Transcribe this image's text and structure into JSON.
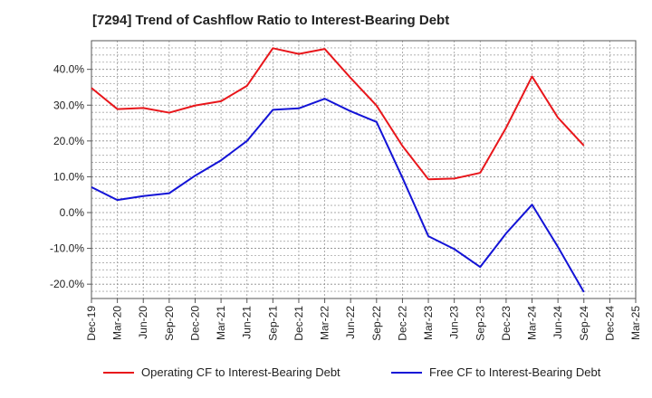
{
  "chart_data": {
    "type": "line",
    "title": "[7294]  Trend of Cashflow Ratio to Interest-Bearing Debt",
    "xlabel": "",
    "ylabel": "",
    "categories": [
      "Dec-19",
      "Mar-20",
      "Jun-20",
      "Sep-20",
      "Dec-20",
      "Mar-21",
      "Jun-21",
      "Sep-21",
      "Dec-21",
      "Mar-22",
      "Jun-22",
      "Sep-22",
      "Dec-22",
      "Mar-23",
      "Jun-23",
      "Sep-23",
      "Dec-23",
      "Mar-24",
      "Jun-24",
      "Sep-24",
      "Dec-24",
      "Mar-25"
    ],
    "ylim": [
      -24,
      48
    ],
    "yticks": [
      -20,
      -10,
      0,
      10,
      20,
      30,
      40
    ],
    "ytick_labels": [
      "-20.0%",
      "-10.0%",
      "0.0%",
      "10.0%",
      "20.0%",
      "30.0%",
      "40.0%"
    ],
    "grid": true,
    "legend_position": "bottom",
    "series": [
      {
        "name": "Operating CF to Interest-Bearing Debt",
        "color": "#e8161b",
        "values": [
          34.8,
          28.9,
          29.2,
          27.9,
          29.9,
          31.1,
          35.4,
          45.9,
          44.3,
          45.7,
          37.6,
          29.9,
          18.6,
          9.3,
          9.5,
          11.1,
          23.7,
          38.0,
          26.5,
          18.7,
          null,
          null
        ]
      },
      {
        "name": "Free CF to Interest-Bearing Debt",
        "color": "#1313d6",
        "values": [
          7.1,
          3.5,
          4.6,
          5.4,
          10.3,
          14.6,
          20.0,
          28.7,
          29.1,
          31.8,
          28.3,
          25.3,
          9.7,
          -6.6,
          -10.2,
          -15.2,
          -5.8,
          2.2,
          -9.6,
          -22.2,
          null,
          null
        ]
      }
    ]
  }
}
